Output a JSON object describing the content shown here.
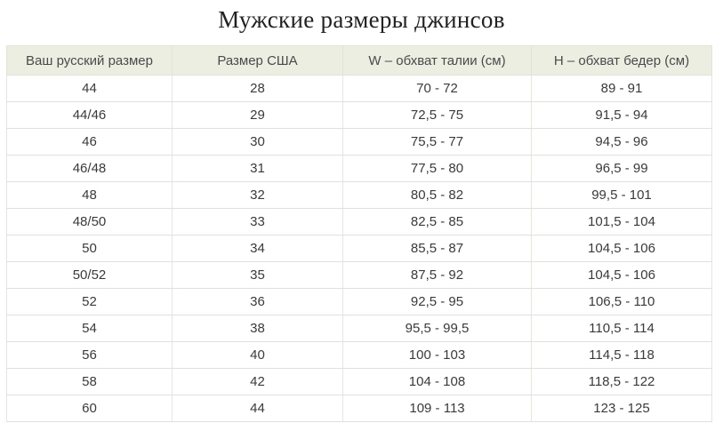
{
  "page": {
    "title": "Мужские размеры джинсов"
  },
  "colors": {
    "header_bg": "#edeee2",
    "header_text": "#4a4a4a",
    "cell_text": "#3a3a3a",
    "row_border": "#e0e0e0",
    "column_border": "#e6e6df",
    "title_text": "#222222",
    "background": "#ffffff"
  },
  "chart_data": {
    "type": "table",
    "title": "Мужские размеры джинсов",
    "columns": [
      "Ваш русский размер",
      "Размер США",
      "W – обхват талии (см)",
      "Н – обхват бедер (см)"
    ],
    "rows": [
      [
        "44",
        "28",
        "70 - 72",
        "89 - 91"
      ],
      [
        "44/46",
        "29",
        "72,5 - 75",
        "91,5 - 94"
      ],
      [
        "46",
        "30",
        "75,5 - 77",
        "94,5 - 96"
      ],
      [
        "46/48",
        "31",
        "77,5 - 80",
        "96,5 - 99"
      ],
      [
        "48",
        "32",
        "80,5 - 82",
        "99,5 - 101"
      ],
      [
        "48/50",
        "33",
        "82,5 - 85",
        "101,5 - 104"
      ],
      [
        "50",
        "34",
        "85,5 - 87",
        "104,5 - 106"
      ],
      [
        "50/52",
        "35",
        "87,5 - 92",
        "104,5 - 106"
      ],
      [
        "52",
        "36",
        "92,5 - 95",
        "106,5 - 110"
      ],
      [
        "54",
        "38",
        "95,5 - 99,5",
        "110,5 - 114"
      ],
      [
        "56",
        "40",
        "100 - 103",
        "114,5 - 118"
      ],
      [
        "58",
        "42",
        "104 - 108",
        "118,5 - 122"
      ],
      [
        "60",
        "44",
        "109 - 113",
        "123 - 125"
      ]
    ]
  }
}
